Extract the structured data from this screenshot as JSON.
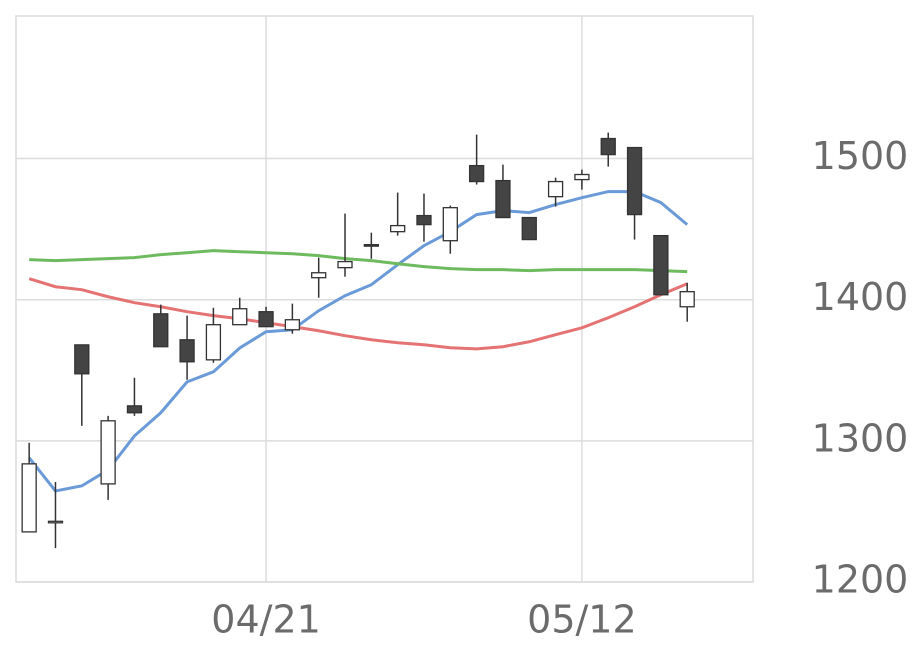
{
  "chart_data": {
    "type": "candlestick",
    "categories": [
      null,
      null,
      null,
      null,
      null,
      null,
      null,
      null,
      null,
      "04/21",
      null,
      null,
      null,
      null,
      null,
      null,
      null,
      null,
      null,
      null,
      null,
      "05/12",
      null,
      null,
      null,
      null,
      null,
      null
    ],
    "open": [
      1235.5,
      1243,
      1368,
      1269.5,
      1324.8,
      1390,
      1371.6,
      1357.4,
      1382.3,
      1391.5,
      1378.7,
      1415.6,
      1422.7,
      1439,
      1448.2,
      1459.6,
      1441.8,
      1495,
      1484.4,
      1458.2,
      1473,
      1485.1,
      1514.2,
      1507.8,
      1445.4,
      1395,
      null,
      null
    ],
    "high": [
      1298.6,
      1270.9,
      1368,
      1317.7,
      1344.7,
      1396.5,
      1388.7,
      1394.3,
      1401.4,
      1395,
      1397.2,
      1429.8,
      1461,
      1447.5,
      1475.9,
      1475.2,
      1466.7,
      1517,
      1495.7,
      1458.2,
      1486.5,
      1492.2,
      1518.4,
      1507.8,
      1445.4,
      1412,
      null,
      null
    ],
    "low": [
      1235.5,
      1224,
      1310.6,
      1258.2,
      1317.7,
      1366.7,
      1343.3,
      1355.3,
      1382.3,
      1380.9,
      1375.9,
      1401.4,
      1416.3,
      1429,
      1445.4,
      1441.1,
      1432.6,
      1481.6,
      1458.2,
      1442.6,
      1466,
      1478,
      1494.3,
      1442.6,
      1403.5,
      1384.4,
      null,
      null
    ],
    "close": [
      1283.7,
      1243,
      1347.5,
      1314.2,
      1319.9,
      1366.7,
      1356,
      1382.3,
      1393.6,
      1380.9,
      1385.8,
      1419.1,
      1427,
      1438,
      1452.5,
      1453.2,
      1465.2,
      1483.7,
      1458.2,
      1442.6,
      1483.7,
      1488.7,
      1502.8,
      1460.3,
      1403.5,
      1405.7,
      null,
      null
    ],
    "up_color": "#ffffff",
    "down_color": "#444444",
    "series": [
      {
        "color": "#6a9bd8",
        "values": [
          1288,
          1264.5,
          1268.1,
          1279.4,
          1303.5,
          1319.9,
          1341.8,
          1348.9,
          1365.8,
          1377.3,
          1378.7,
          1392.2,
          1402.8,
          1410.6,
          1424.8,
          1438.3,
          1448.2,
          1460.3,
          1463.1,
          1461.7,
          1467.4,
          1472.3,
          1476.6,
          1476.6,
          1468.8,
          1453.2,
          null,
          null
        ]
      },
      {
        "color": "#e57373",
        "values": [
          1414.9,
          1409.2,
          1407.1,
          1402.1,
          1397.9,
          1395,
          1391.5,
          1388.7,
          1386.5,
          1383.7,
          1380.9,
          1378,
          1374.5,
          1371.6,
          1369.5,
          1368.1,
          1366,
          1365.2,
          1366.7,
          1370.2,
          1375.2,
          1380.1,
          1387.2,
          1395,
          1403.5,
          1411.3,
          null,
          null
        ]
      },
      {
        "color": "#6dbb5e",
        "values": [
          1428.4,
          1427.7,
          1428.4,
          1429.1,
          1429.8,
          1431.9,
          1433.3,
          1434.8,
          1434,
          1433.3,
          1432.6,
          1431.2,
          1429.1,
          1427.7,
          1425.5,
          1423.4,
          1422,
          1421.3,
          1421.3,
          1420.6,
          1421.3,
          1421.3,
          1421.3,
          1421.3,
          1420.6,
          1419.9,
          null,
          null
        ]
      }
    ],
    "ylim": [
      1200,
      1601
    ],
    "yticks": [
      1200,
      1300,
      1400,
      1500
    ],
    "grid": true
  }
}
